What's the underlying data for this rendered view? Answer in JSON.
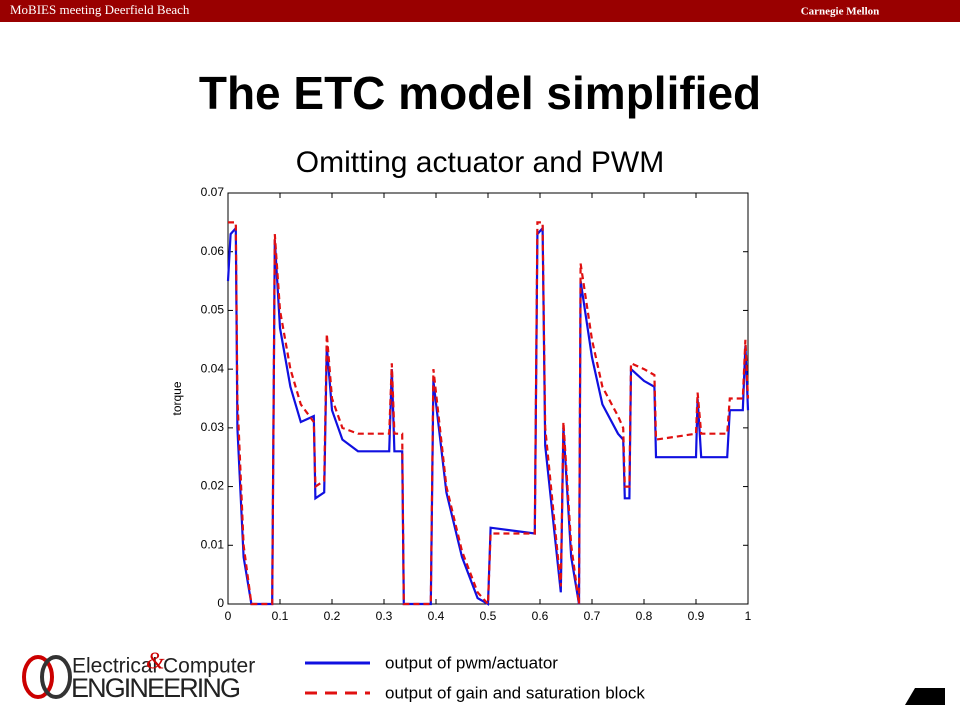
{
  "header": {
    "left": "MoBIES meeting Deerfield Beach",
    "right": "Carnegie Mellon"
  },
  "title": "The ETC model simplified",
  "subtitle": "Omitting actuator and PWM",
  "logo": {
    "word1": "Electrical",
    "amp": "&",
    "word2": "Computer",
    "word3": "ENGINEERING"
  },
  "chart_data": {
    "type": "line",
    "ylabel": "torque",
    "x": [
      0,
      0.005,
      0.015,
      0.018,
      0.03,
      0.045,
      0.085,
      0.09,
      0.1,
      0.12,
      0.14,
      0.165,
      0.168,
      0.185,
      0.19,
      0.2,
      0.22,
      0.25,
      0.31,
      0.315,
      0.32,
      0.335,
      0.338,
      0.39,
      0.395,
      0.42,
      0.45,
      0.48,
      0.5,
      0.505,
      0.59,
      0.595,
      0.605,
      0.61,
      0.64,
      0.645,
      0.66,
      0.675,
      0.678,
      0.7,
      0.72,
      0.75,
      0.76,
      0.763,
      0.772,
      0.775,
      0.8,
      0.82,
      0.823,
      0.9,
      0.903,
      0.91,
      0.96,
      0.965,
      0.99,
      0.995,
      1
    ],
    "series": [
      {
        "name": "output of pwm/actuator",
        "color": "#1010e0",
        "linestyle": "solid",
        "values": [
          0.055,
          0.063,
          0.064,
          0.03,
          0.008,
          0,
          0,
          0.062,
          0.047,
          0.037,
          0.031,
          0.032,
          0.018,
          0.019,
          0.044,
          0.033,
          0.028,
          0.026,
          0.026,
          0.04,
          0.026,
          0.026,
          0,
          0,
          0.038,
          0.019,
          0.008,
          0.001,
          0,
          0.013,
          0.012,
          0.063,
          0.064,
          0.027,
          0.002,
          0.03,
          0.008,
          0,
          0.055,
          0.042,
          0.034,
          0.029,
          0.028,
          0.018,
          0.018,
          0.04,
          0.038,
          0.037,
          0.025,
          0.025,
          0.035,
          0.025,
          0.025,
          0.033,
          0.033,
          0.044,
          0.033
        ]
      },
      {
        "name": "output of gain and saturation block",
        "color": "#e01010",
        "linestyle": "dashed",
        "values": [
          0.065,
          0.065,
          0.065,
          0.035,
          0.01,
          0,
          0,
          0.063,
          0.05,
          0.04,
          0.034,
          0.031,
          0.02,
          0.021,
          0.046,
          0.035,
          0.03,
          0.029,
          0.029,
          0.041,
          0.029,
          0.029,
          0,
          0,
          0.04,
          0.02,
          0.009,
          0.002,
          0,
          0.012,
          0.012,
          0.065,
          0.065,
          0.03,
          0.003,
          0.031,
          0.01,
          0,
          0.058,
          0.045,
          0.037,
          0.032,
          0.03,
          0.02,
          0.02,
          0.041,
          0.04,
          0.039,
          0.028,
          0.029,
          0.036,
          0.029,
          0.029,
          0.035,
          0.035,
          0.045,
          0.035
        ]
      }
    ],
    "xlim": [
      0,
      1
    ],
    "ylim": [
      0,
      0.07
    ],
    "xticks": [
      0,
      0.1,
      0.2,
      0.3,
      0.4,
      0.5,
      0.6,
      0.7,
      0.8,
      0.9,
      1
    ],
    "yticks": [
      0,
      0.01,
      0.02,
      0.03,
      0.04,
      0.05,
      0.06,
      0.07
    ],
    "legend": "bottom"
  }
}
